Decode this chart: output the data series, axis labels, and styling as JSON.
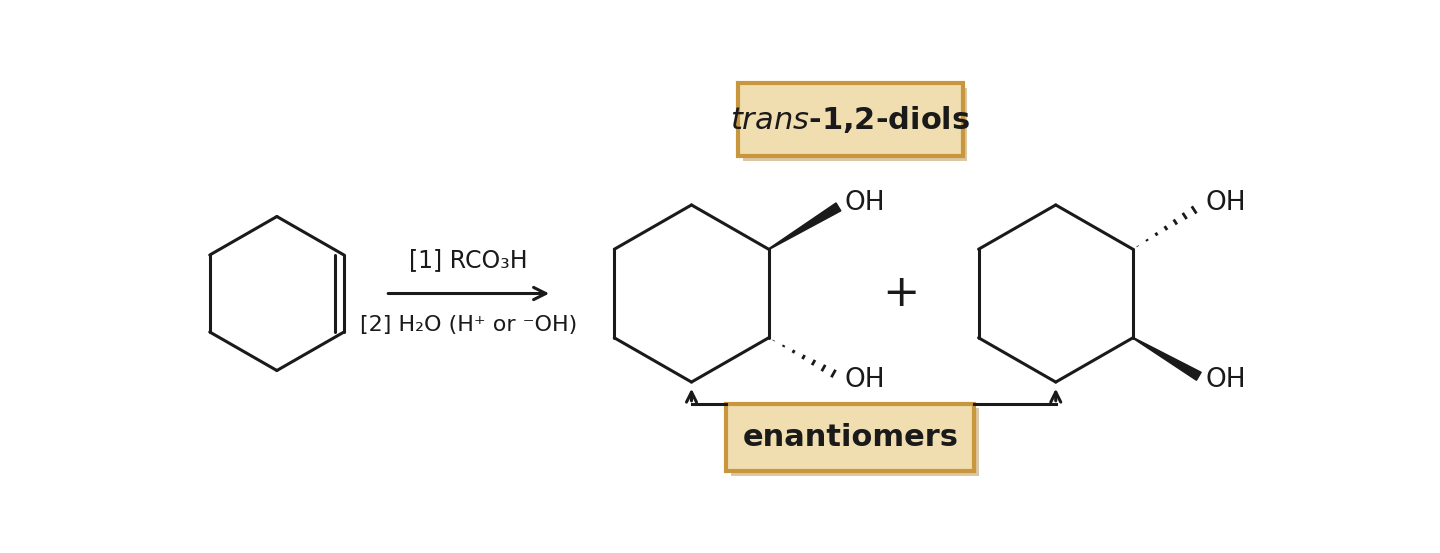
{
  "bg_color": "#ffffff",
  "line_color": "#1a1a1a",
  "box_fill": "#f0ddb0",
  "box_edge": "#c8963c",
  "shadow_color": "#c0a060",
  "trans_diols_label": "trans-1,2-diols",
  "enantiomers_label": "enantiomers",
  "reagent_line1": "[1] RCO₃H",
  "reagent_line2": "[2] H₂O (H⁺ or ⁻OH)",
  "OH_label": "OH",
  "plus_label": "+",
  "font_size_reagent": 17,
  "font_size_label": 19,
  "font_size_box": 22,
  "lw": 2.2
}
